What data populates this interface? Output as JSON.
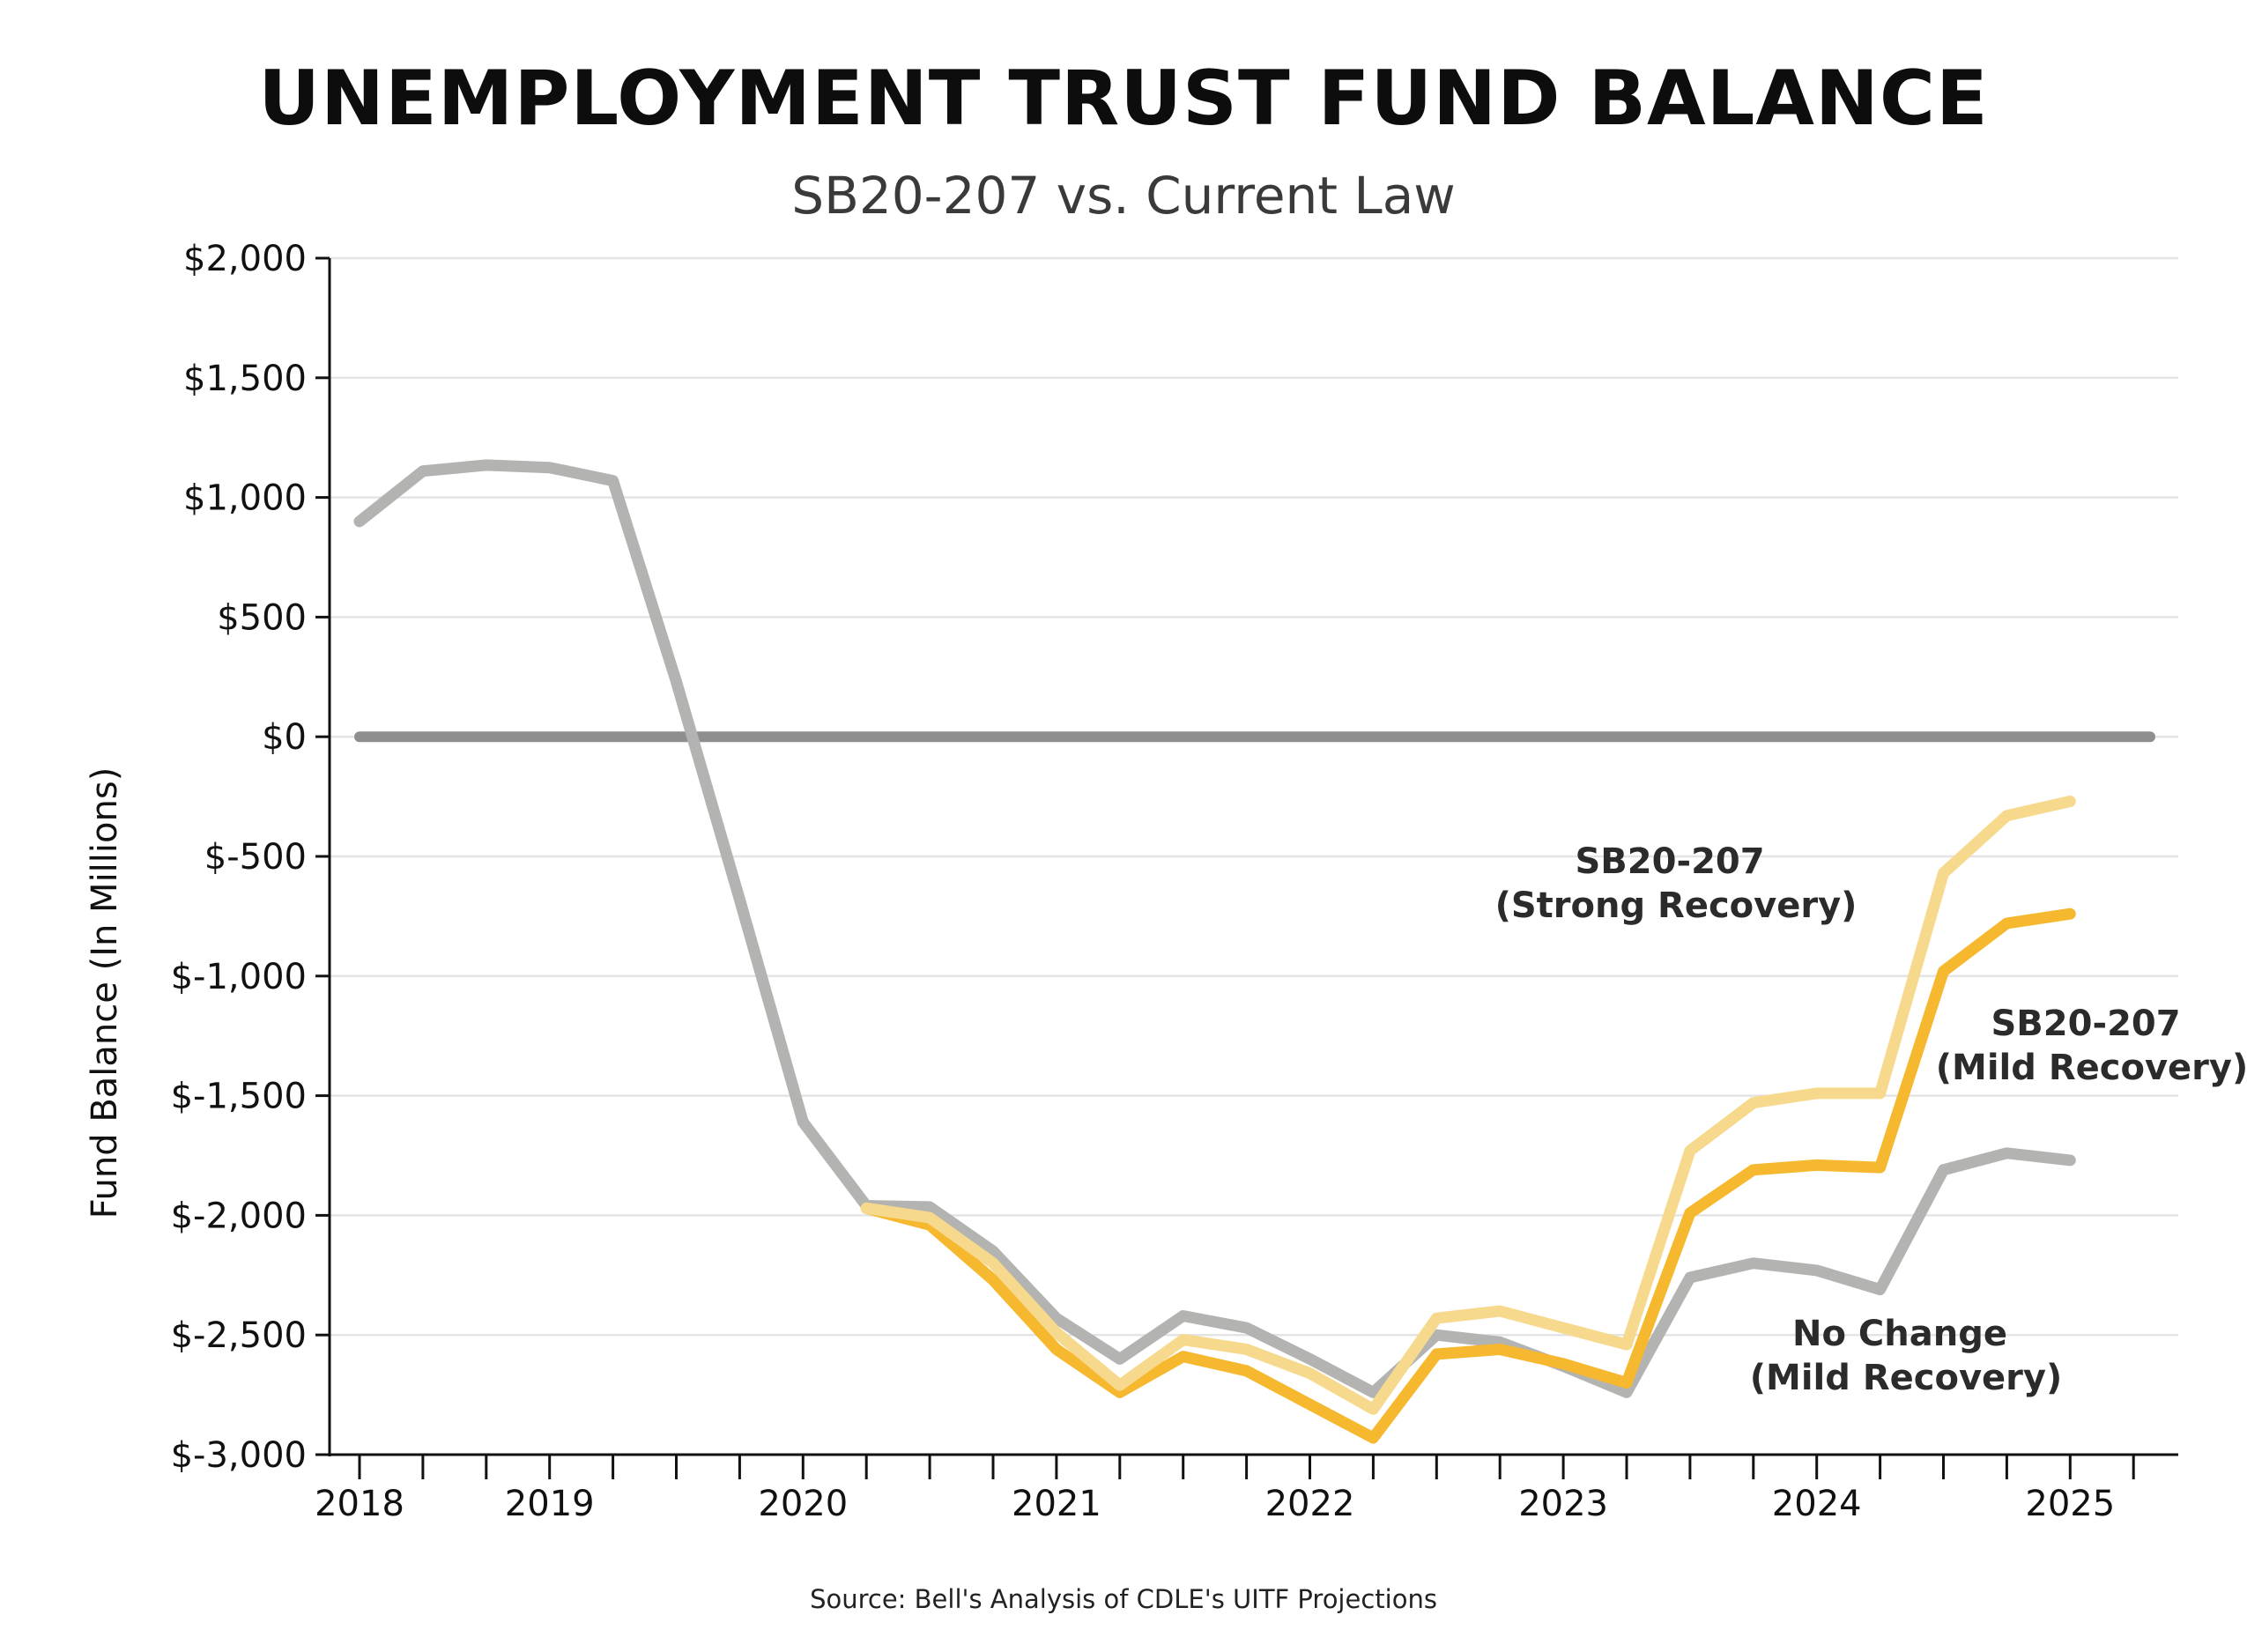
{
  "chart_data": {
    "type": "line",
    "title": "UNEMPLOYMENT TRUST FUND BALANCE",
    "subtitle": "SB20-207 vs. Current Law",
    "ylabel": "Fund Balance (In Millions)",
    "xlabel": "",
    "ylim": [
      -3000,
      2000
    ],
    "y_ticks": [
      2000,
      1500,
      1000,
      500,
      0,
      -500,
      -1000,
      -1500,
      -2000,
      -2500,
      -3000
    ],
    "y_tick_labels": [
      "$2,000",
      "$1,500",
      "$1,000",
      "$500",
      "$0",
      "$-500",
      "$-1,000",
      "$-1,500",
      "$-2,000",
      "$-2,500",
      "$-3,000"
    ],
    "x_label_positions": [
      0,
      3,
      7,
      11,
      15,
      19,
      23,
      27
    ],
    "x_tick_labels": [
      "2018",
      "2019",
      "2020",
      "2021",
      "2022",
      "2023",
      "2024",
      "2025"
    ],
    "x_range": [
      0,
      28
    ],
    "grid": true,
    "zero_line": true,
    "series": [
      {
        "key": "nochange",
        "color": "#b3b3b1",
        "x": [
          0,
          1,
          2,
          3,
          4,
          5,
          6,
          7,
          8,
          9,
          10,
          11,
          12,
          13,
          14,
          15,
          16,
          17,
          18,
          19,
          20,
          21,
          22,
          23,
          24,
          25,
          26,
          27
        ],
        "values": [
          900,
          1110,
          1135,
          1125,
          1070,
          230,
          -680,
          -1610,
          -1960,
          -1965,
          -2150,
          -2430,
          -2600,
          -2420,
          -2470,
          -2600,
          -2740,
          -2500,
          -2530,
          -2630,
          -2740,
          -2260,
          -2200,
          -2230,
          -2310,
          -1810,
          -1740,
          -1770
        ]
      },
      {
        "key": "mild",
        "color": "#f6b82e",
        "x": [
          8,
          9,
          10,
          11,
          12,
          13,
          14,
          15,
          16,
          17,
          18,
          19,
          20,
          21,
          22,
          23,
          24,
          25,
          26,
          27
        ],
        "values": [
          -1970,
          -2040,
          -2270,
          -2560,
          -2740,
          -2590,
          -2650,
          -2790,
          -2930,
          -2580,
          -2560,
          -2620,
          -2700,
          -1990,
          -1810,
          -1790,
          -1800,
          -980,
          -780,
          -740
        ]
      },
      {
        "key": "strong",
        "color": "#f6d98c",
        "x": [
          8,
          9,
          10,
          11,
          12,
          13,
          14,
          15,
          16,
          17,
          18,
          19,
          20,
          21,
          22,
          23,
          24,
          25,
          26,
          27
        ],
        "values": [
          -1970,
          -2010,
          -2200,
          -2490,
          -2710,
          -2520,
          -2560,
          -2660,
          -2810,
          -2430,
          -2400,
          -2470,
          -2540,
          -1730,
          -1530,
          -1490,
          -1490,
          -570,
          -330,
          -270
        ]
      }
    ],
    "annotations": {
      "strong": [
        "SB20-207",
        "(Strong Recovery)"
      ],
      "mild": [
        "SB20-207",
        "(Mild Recovery)"
      ],
      "nochange": [
        "No Change",
        "(Mild Recovery)"
      ]
    },
    "source": "Source: Bell's Analysis of CDLE's UITF Projections"
  }
}
